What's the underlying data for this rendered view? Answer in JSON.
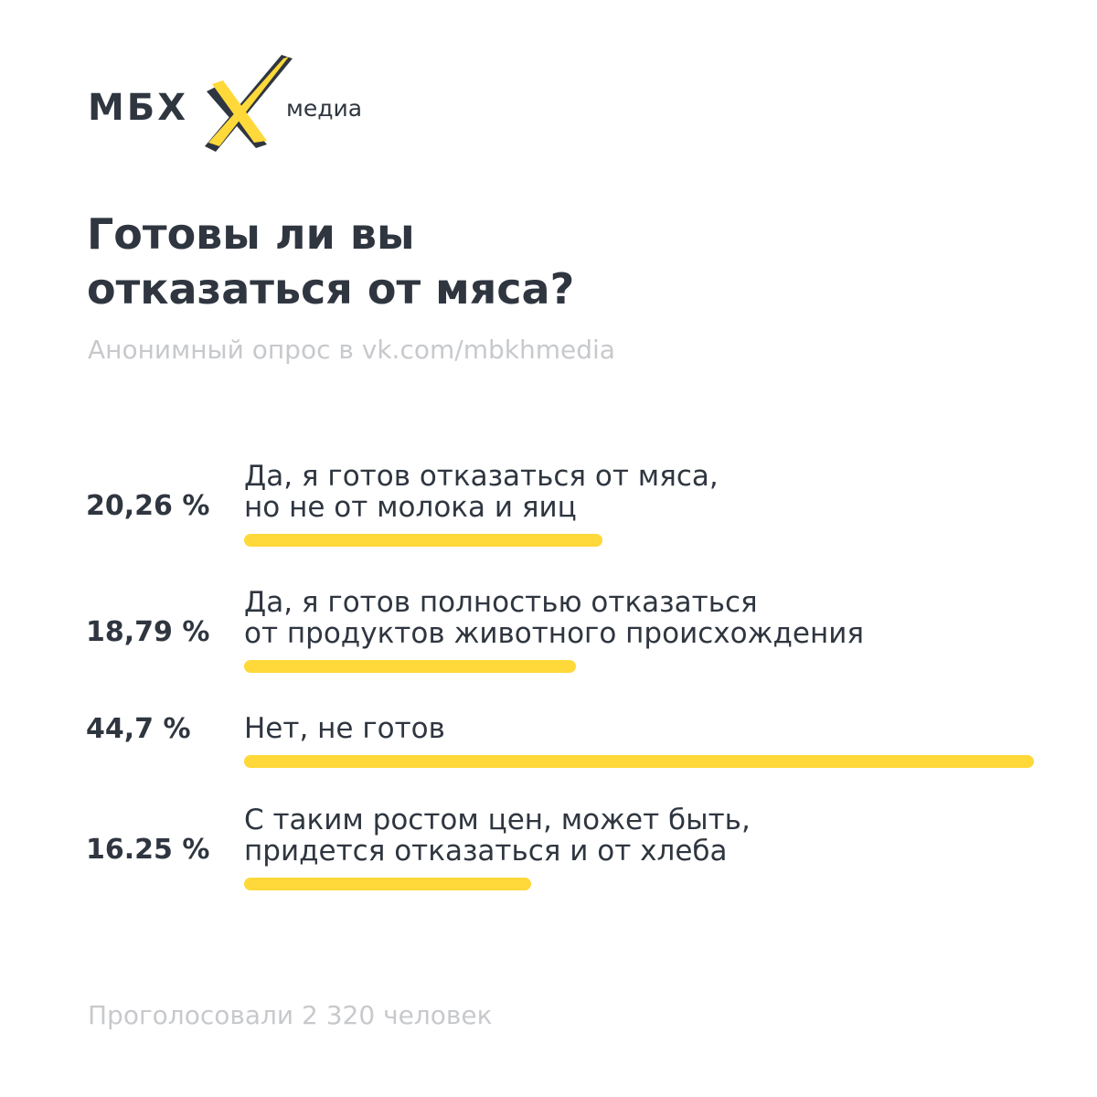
{
  "brand": {
    "left": "МБХ",
    "right": "медиа",
    "accent": "#ffd83a",
    "dark": "#2f3640"
  },
  "title_lines": [
    "Готовы ли вы",
    "отказаться от мяса?"
  ],
  "subtitle": "Анонимный опрос в vk.com/mbkhmedia",
  "footer": "Проголосовали 2 320 человек",
  "chart_data": {
    "type": "bar",
    "orientation": "horizontal",
    "bar_color": "#ffd83a",
    "categories": [
      [
        "Да, я готов отказаться от мяса,",
        "но не от молока и яиц"
      ],
      [
        "Да, я готов полностью отказаться",
        "от продуктов животного происхождения"
      ],
      [
        "Нет, не готов"
      ],
      [
        "С таким ростом цен, может быть,",
        "придется отказаться и от хлеба"
      ]
    ],
    "values": [
      20.26,
      18.79,
      44.7,
      16.25
    ],
    "value_labels": [
      "20,26 %",
      "18,79 %",
      "44,7 %",
      "16.25 %"
    ],
    "xlim": [
      0,
      44.7
    ]
  }
}
